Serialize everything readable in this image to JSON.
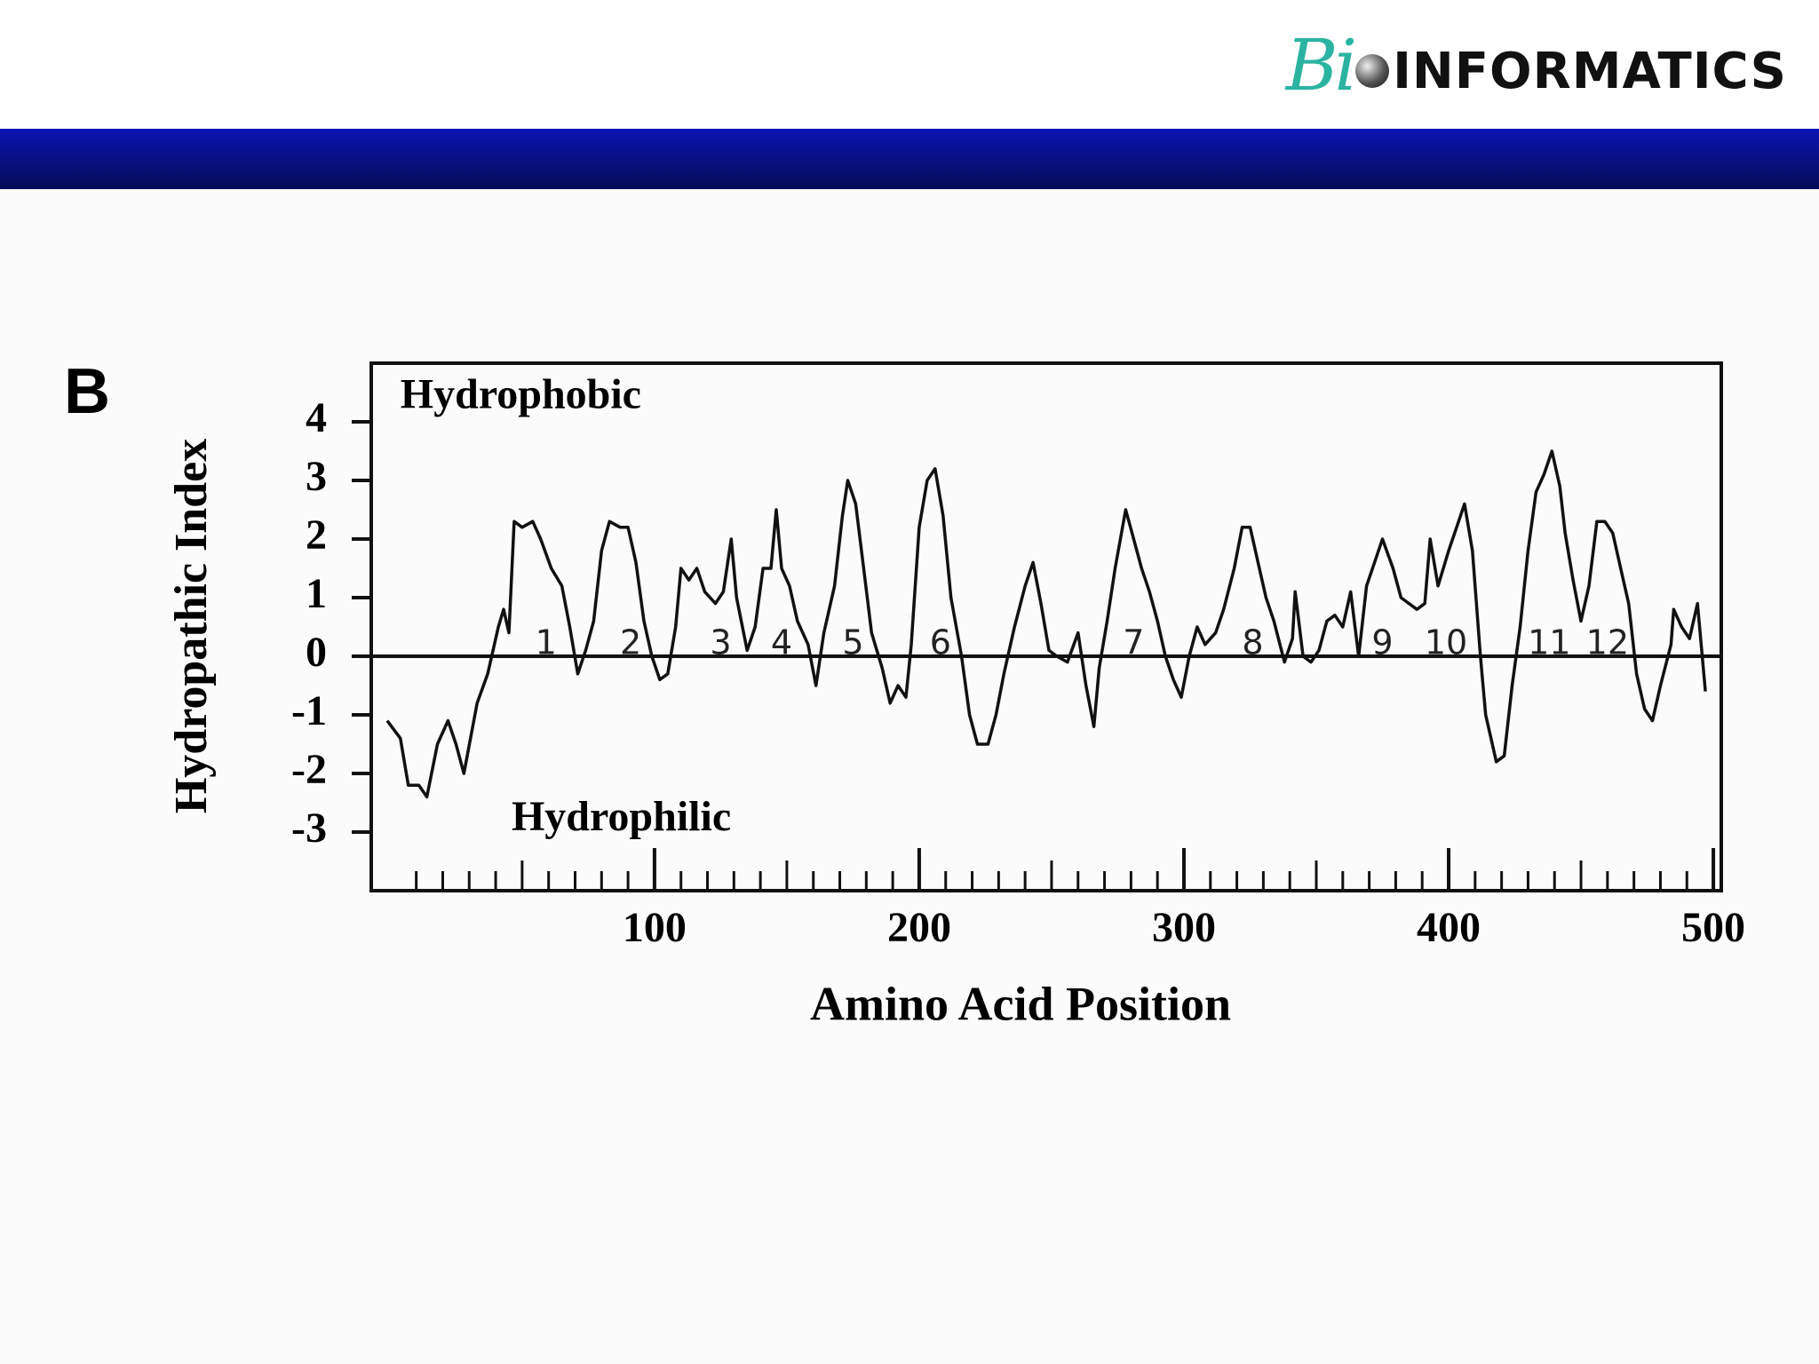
{
  "header": {
    "logo_script": "Bi",
    "logo_text": "INFORMATICS"
  },
  "chart_data": {
    "type": "line",
    "panel_label": "B",
    "xlabel": "Amino Acid Position",
    "ylabel": "Hydropathic Index",
    "annotations": [
      {
        "text": "Hydrophobic",
        "x": 4,
        "y": 4.4
      },
      {
        "text": "Hydrophilic",
        "x": 46,
        "y": -2.8
      }
    ],
    "segments": [
      {
        "text": "1",
        "x": 59,
        "y": 0.2
      },
      {
        "text": "2",
        "x": 91,
        "y": 0.2
      },
      {
        "text": "3",
        "x": 125,
        "y": 0.2
      },
      {
        "text": "4",
        "x": 148,
        "y": 0.2
      },
      {
        "text": "5",
        "x": 175,
        "y": 0.2
      },
      {
        "text": "6",
        "x": 208,
        "y": 0.2
      },
      {
        "text": "7",
        "x": 281,
        "y": 0.2
      },
      {
        "text": "8",
        "x": 326,
        "y": 0.2
      },
      {
        "text": "9",
        "x": 375,
        "y": 0.2
      },
      {
        "text": "10",
        "x": 399,
        "y": 0.2
      },
      {
        "text": "11",
        "x": 438,
        "y": 0.2
      },
      {
        "text": "12",
        "x": 460,
        "y": 0.2
      }
    ],
    "color": "#111111",
    "x": [
      -1,
      4,
      7,
      11,
      14,
      18,
      22,
      25,
      28,
      33,
      37,
      41,
      43,
      45,
      47,
      50,
      54,
      57,
      61,
      65,
      68,
      71,
      74,
      77,
      80,
      83,
      87,
      90,
      93,
      96,
      99,
      102,
      105,
      108,
      110,
      113,
      116,
      119,
      123,
      126,
      129,
      131,
      135,
      138,
      141,
      144,
      146,
      148,
      151,
      154,
      158,
      161,
      164,
      168,
      171,
      173,
      176,
      179,
      182,
      186,
      189,
      192,
      195,
      197,
      200,
      203,
      206,
      209,
      212,
      216,
      219,
      222,
      226,
      229,
      232,
      236,
      240,
      243,
      246,
      249,
      252,
      256,
      260,
      263,
      266,
      268,
      271,
      274,
      278,
      281,
      284,
      287,
      290,
      293,
      296,
      299,
      302,
      305,
      308,
      312,
      315,
      319,
      322,
      325,
      328,
      331,
      334,
      338,
      341,
      342,
      345,
      348,
      351,
      354,
      357,
      360,
      363,
      366,
      369,
      372,
      375,
      379,
      382,
      385,
      388,
      391,
      393,
      396,
      400,
      403,
      406,
      409,
      412,
      414,
      418,
      421,
      424,
      427,
      430,
      433,
      436,
      439,
      442,
      444,
      447,
      450,
      453,
      456,
      459,
      462,
      465,
      468,
      471,
      474,
      477,
      480,
      484,
      485,
      488,
      491,
      494,
      497
    ],
    "values": [
      -1.1,
      -1.4,
      -2.2,
      -2.2,
      -2.4,
      -1.5,
      -1.1,
      -1.5,
      -2.0,
      -0.8,
      -0.3,
      0.5,
      0.8,
      0.4,
      2.3,
      2.2,
      2.3,
      2.0,
      1.5,
      1.2,
      0.5,
      -0.3,
      0.1,
      0.6,
      1.8,
      2.3,
      2.2,
      2.2,
      1.6,
      0.6,
      0.0,
      -0.4,
      -0.3,
      0.5,
      1.5,
      1.3,
      1.5,
      1.1,
      0.9,
      1.1,
      2.0,
      1.0,
      0.1,
      0.5,
      1.5,
      1.5,
      2.5,
      1.5,
      1.2,
      0.6,
      0.2,
      -0.5,
      0.4,
      1.2,
      2.4,
      3.0,
      2.6,
      1.5,
      0.4,
      -0.2,
      -0.8,
      -0.5,
      -0.7,
      0.2,
      2.2,
      3.0,
      3.2,
      2.4,
      1.0,
      0.0,
      -1.0,
      -1.5,
      -1.5,
      -1.0,
      -0.3,
      0.5,
      1.2,
      1.6,
      0.9,
      0.1,
      0.0,
      -0.1,
      0.4,
      -0.5,
      -1.2,
      -0.2,
      0.6,
      1.5,
      2.5,
      2.0,
      1.5,
      1.1,
      0.6,
      0.0,
      -0.4,
      -0.7,
      0.0,
      0.5,
      0.2,
      0.4,
      0.8,
      1.5,
      2.2,
      2.2,
      1.6,
      1.0,
      0.6,
      -0.1,
      0.3,
      1.1,
      0.0,
      -0.1,
      0.1,
      0.6,
      0.7,
      0.5,
      1.1,
      0.0,
      1.2,
      1.6,
      2.0,
      1.5,
      1.0,
      0.9,
      0.8,
      0.9,
      2.0,
      1.2,
      1.8,
      2.2,
      2.6,
      1.8,
      0.0,
      -1.0,
      -1.8,
      -1.7,
      -0.5,
      0.5,
      1.8,
      2.8,
      3.1,
      3.5,
      2.9,
      2.1,
      1.3,
      0.6,
      1.2,
      2.3,
      2.3,
      2.1,
      1.5,
      0.9,
      -0.3,
      -0.9,
      -1.1,
      -0.5,
      0.2,
      0.8,
      0.5,
      0.3,
      0.9,
      -0.6
    ],
    "xlim": [
      -7,
      503
    ],
    "ylim": [
      -4,
      5
    ],
    "xticks": [
      100,
      200,
      300,
      400,
      500
    ],
    "xminorticks": [
      10,
      20,
      30,
      40,
      50,
      60,
      70,
      80,
      90,
      110,
      120,
      130,
      140,
      150,
      160,
      170,
      180,
      190,
      210,
      220,
      230,
      240,
      250,
      260,
      270,
      280,
      290,
      310,
      320,
      330,
      340,
      350,
      360,
      370,
      380,
      390,
      410,
      420,
      430,
      440,
      450,
      460,
      470,
      480,
      490
    ],
    "yticks": [
      -3,
      -2,
      -1,
      0,
      1,
      2,
      3,
      4
    ],
    "zero_line": true
  }
}
